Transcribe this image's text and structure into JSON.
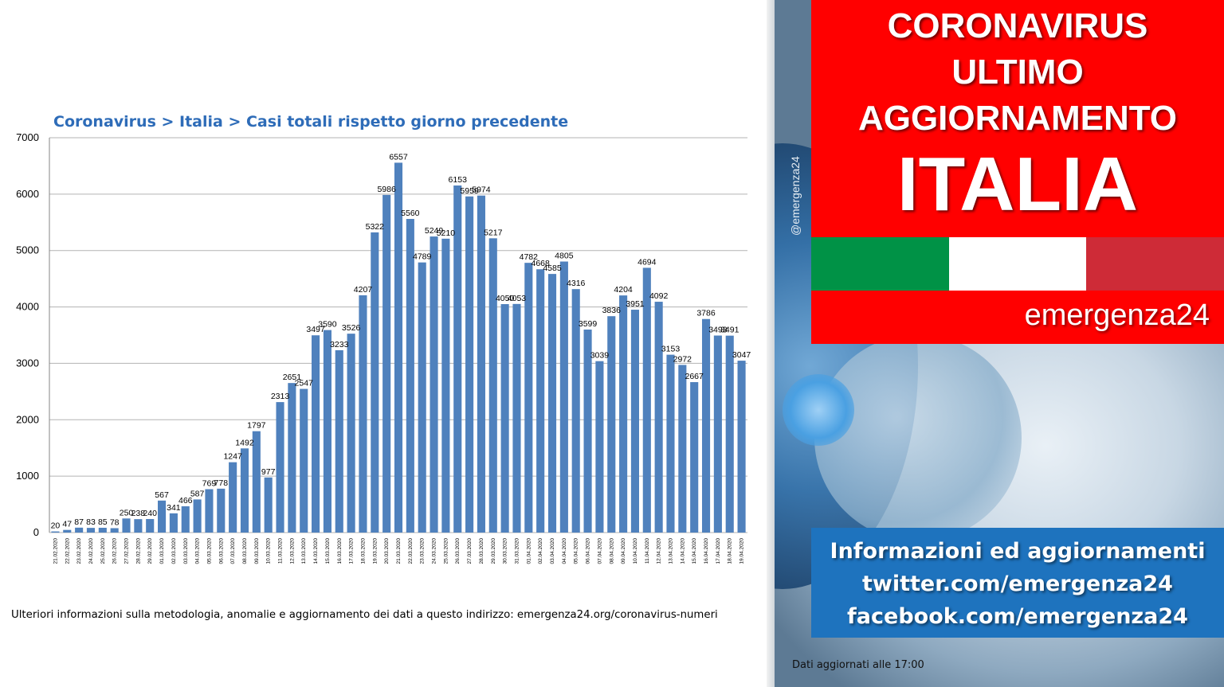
{
  "chart_data": {
    "type": "bar",
    "title": "Coronavirus > Italia > Casi totali rispetto giorno precedente",
    "xlabel": "",
    "ylabel": "",
    "ylim": [
      0,
      7000
    ],
    "yticks": [
      "0",
      "1000",
      "2000",
      "3000",
      "4000",
      "5000",
      "6000",
      "7000"
    ],
    "grid": true,
    "legend": "none",
    "bar_color": "#4f81bd",
    "categories": [
      "21.02.2020",
      "22.02.2020",
      "23.02.2020",
      "24.02.2020",
      "25.02.2020",
      "26.02.2020",
      "27.02.2020",
      "28.02.2020",
      "29.02.2020",
      "01.03.2020",
      "02.03.2020",
      "03.03.2020",
      "04.03.2020",
      "05.03.2020",
      "06.03.2020",
      "07.03.2020",
      "08.03.2020",
      "09.03.2020",
      "10.03.2020",
      "11.03.2020",
      "12.03.2020",
      "13.03.2020",
      "14.03.2020",
      "15.03.2020",
      "16.03.2020",
      "17.03.2020",
      "18.03.2020",
      "19.03.2020",
      "20.03.2020",
      "21.03.2020",
      "22.03.2020",
      "23.03.2020",
      "24.03.2020",
      "25.03.2020",
      "26.03.2020",
      "27.03.2020",
      "28.03.2020",
      "29.03.2020",
      "30.03.2020",
      "31.03.2020",
      "01.04.2020",
      "02.04.2020",
      "03.04.2020",
      "04.04.2020",
      "05.04.2020",
      "06.04.2020",
      "07.04.2020",
      "08.04.2020",
      "09.04.2020",
      "10.04.2020",
      "11.04.2020",
      "12.04.2020",
      "13.04.2020",
      "14.04.2020",
      "15.04.2020",
      "16.04.2020",
      "17.04.2020",
      "18.04.2020",
      "19.04.2020"
    ],
    "values": [
      20,
      47,
      87,
      83,
      85,
      78,
      250,
      238,
      240,
      567,
      341,
      466,
      587,
      769,
      778,
      1247,
      1492,
      1797,
      977,
      2313,
      2651,
      2547,
      3497,
      3590,
      3233,
      3526,
      4207,
      5322,
      5986,
      6557,
      5560,
      4789,
      5249,
      5210,
      6153,
      5959,
      5974,
      5217,
      4050,
      4053,
      4782,
      4668,
      4585,
      4805,
      4316,
      3599,
      3039,
      3836,
      4204,
      3951,
      4694,
      4092,
      3153,
      2972,
      2667,
      3786,
      3493,
      3491,
      3047
    ]
  },
  "footnote": "Ulteriori informazioni sulla metodologia, anomalie e aggiornamento dei dati a questo indirizzo: emergenza24.org/coronavirus-numeri",
  "side_handle": "@emergenza24",
  "banner": {
    "line1": "CORONAVIRUS",
    "line2": "ULTIMO",
    "line3": "AGGIORNAMENTO",
    "line4": "ITALIA"
  },
  "flag_colors": [
    "#009246",
    "#ffffff",
    "#ce2b37"
  ],
  "brand": "emergenza24",
  "info": {
    "line1": "Informazioni ed aggiornamenti",
    "line2": "twitter.com/emergenza24",
    "line3": "facebook.com/emergenza24"
  },
  "updated_text": "Dati aggiornati alle 17:00"
}
